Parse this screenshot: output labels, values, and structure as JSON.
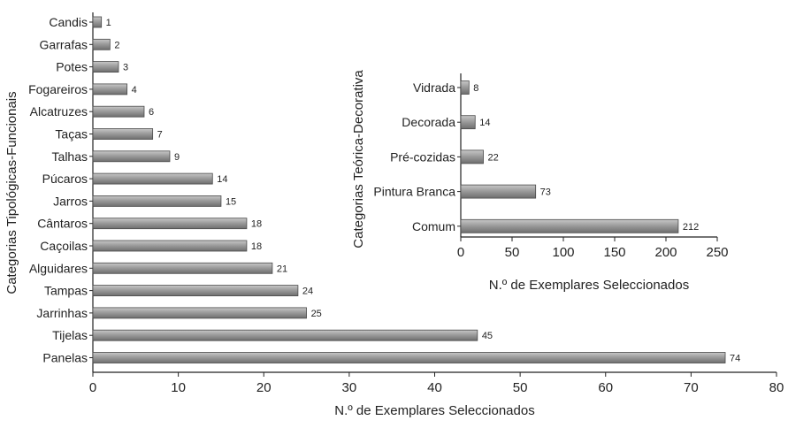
{
  "chart_data": [
    {
      "type": "bar",
      "orientation": "horizontal",
      "ylabel": "Categorias Tipológicas-Funcionais",
      "xlabel": "N.º de Exemplares Seleccionados",
      "categories": [
        "Candis",
        "Garrafas",
        "Potes",
        "Fogareiros",
        "Alcatruzes",
        "Taças",
        "Talhas",
        "Púcaros",
        "Jarros",
        "Cântaros",
        "Caçoilas",
        "Alguidares",
        "Tampas",
        "Jarrinhas",
        "Tijelas",
        "Panelas"
      ],
      "values": [
        1,
        2,
        3,
        4,
        6,
        7,
        9,
        14,
        15,
        18,
        18,
        21,
        24,
        25,
        45,
        74
      ],
      "xlim": [
        0,
        80
      ],
      "xticks": [
        0,
        10,
        20,
        30,
        40,
        50,
        60,
        70,
        80
      ],
      "grid": false,
      "bar_color": "#9a9a9a"
    },
    {
      "type": "bar",
      "orientation": "horizontal",
      "ylabel": "Categorias Teórica-Decorativa",
      "xlabel": "N.º de Exemplares Seleccionados",
      "categories": [
        "Vidrada",
        "Decorada",
        "Pré-cozidas",
        "Pintura Branca",
        "Comum"
      ],
      "values": [
        8,
        14,
        22,
        73,
        212
      ],
      "xlim": [
        0,
        250
      ],
      "xticks": [
        0,
        50,
        100,
        150,
        200,
        250
      ],
      "grid": false,
      "bar_color": "#9a9a9a"
    }
  ]
}
